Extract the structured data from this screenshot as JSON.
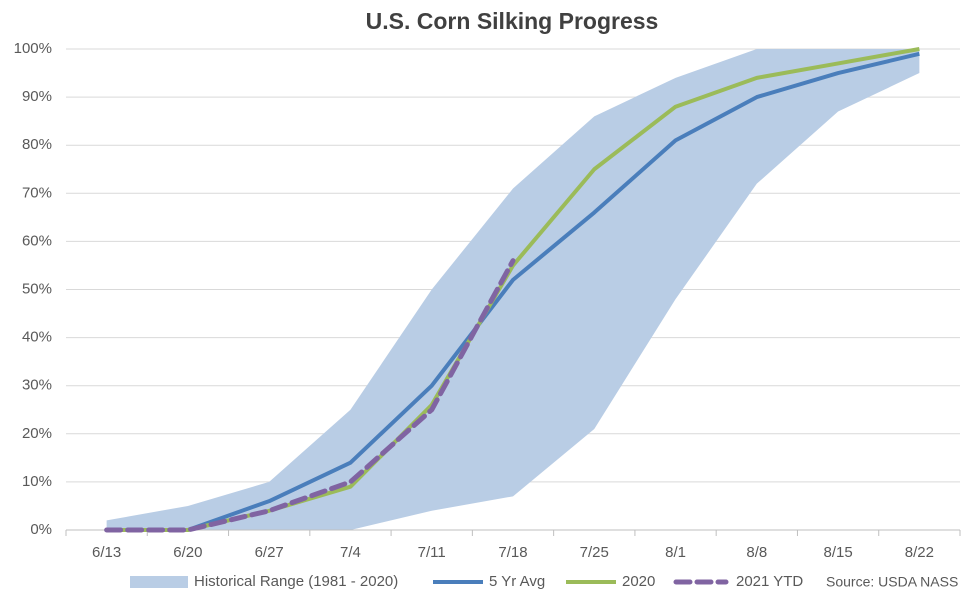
{
  "chart_data": {
    "type": "line",
    "title": "U.S. Corn Silking Progress",
    "categories": [
      "6/13",
      "6/20",
      "6/27",
      "7/4",
      "7/11",
      "7/18",
      "7/25",
      "8/1",
      "8/8",
      "8/15",
      "8/22"
    ],
    "band": {
      "name": "Historical Range (1981 - 2020)",
      "color": "#b9cde5",
      "low": [
        0,
        0,
        0,
        0,
        4,
        7,
        21,
        48,
        72,
        87,
        95
      ],
      "high": [
        2,
        5,
        10,
        25,
        50,
        71,
        86,
        94,
        100,
        100,
        100
      ]
    },
    "series": [
      {
        "name": "5 Yr Avg",
        "color": "#4a7ebb",
        "values": [
          0,
          0,
          6,
          14,
          30,
          52,
          66,
          81,
          90,
          95,
          99
        ]
      },
      {
        "name": "2020",
        "color": "#9bbb59",
        "values": [
          0,
          0,
          4,
          9,
          26,
          55,
          75,
          88,
          94,
          97,
          100
        ]
      },
      {
        "name": "2021 YTD",
        "color": "#8064a2",
        "dashed": true,
        "values": [
          0,
          0,
          4,
          10,
          25,
          56,
          null,
          null,
          null,
          null,
          null
        ]
      }
    ],
    "ylim": [
      0,
      100
    ],
    "yticks": [
      {
        "value": 0,
        "label": "0%"
      },
      {
        "value": 10,
        "label": "10%"
      },
      {
        "value": 20,
        "label": "20%"
      },
      {
        "value": 30,
        "label": "30%"
      },
      {
        "value": 40,
        "label": "40%"
      },
      {
        "value": 50,
        "label": "50%"
      },
      {
        "value": 60,
        "label": "60%"
      },
      {
        "value": 70,
        "label": "70%"
      },
      {
        "value": 80,
        "label": "80%"
      },
      {
        "value": 90,
        "label": "90%"
      },
      {
        "value": 100,
        "label": "100%"
      }
    ],
    "grid": true,
    "source": "Source: USDA NASS"
  }
}
